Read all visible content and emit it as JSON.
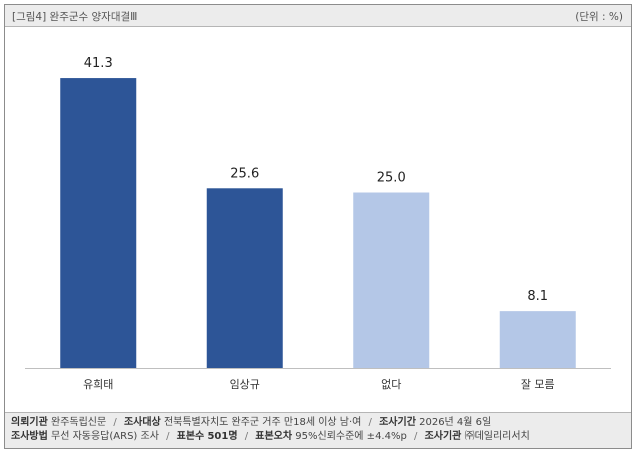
{
  "header": {
    "title": "[그림4] 완주군수 양자대결Ⅲ",
    "unit": "(단위 : %)"
  },
  "colors": {
    "dark_bar": "#2d5597",
    "light_bar": "#b4c7e7"
  },
  "chart_data": {
    "type": "bar",
    "categories": [
      "유희태",
      "임상규",
      "없다",
      "잘 모름"
    ],
    "values": [
      41.3,
      25.6,
      25.0,
      8.1
    ],
    "value_labels": [
      "41.3",
      "25.6",
      "25.0",
      "8.1"
    ],
    "bar_colors": [
      "#2d5597",
      "#2d5597",
      "#b4c7e7",
      "#b4c7e7"
    ],
    "ylim": [
      0,
      50
    ],
    "grid": false,
    "title": "",
    "xlabel": "",
    "ylabel": ""
  },
  "footer": {
    "line1": [
      {
        "label": "의뢰기관",
        "value": "완주독립신문"
      },
      {
        "label": "조사대상",
        "value": "전북특별자치도 완주군 거주 만18세 이상 남·여"
      },
      {
        "label": "조사기간",
        "value": "2026년 4월 6일"
      }
    ],
    "line2": [
      {
        "label": "조사방법",
        "value": "무선 자동응답(ARS) 조사"
      },
      {
        "label": "표본수",
        "value": "501명"
      },
      {
        "label": "표본오차",
        "value": "95%신뢰수준에 ±4.4%p"
      },
      {
        "label": "조사기관",
        "value": "㈜데일리리서치"
      }
    ]
  }
}
